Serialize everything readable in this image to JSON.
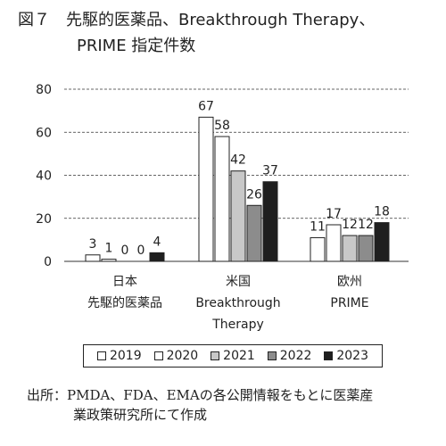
{
  "figure": {
    "title_line1": "図７　先駆的医薬品、Breakthrough Therapy、",
    "title_line2": "PRIME 指定件数",
    "source_line1": "出所：PMDA、FDA、EMAの各公開情報をもとに医薬産",
    "source_line2": "業政策研究所にて作成"
  },
  "chart_data": {
    "type": "bar",
    "title": "図７　先駆的医薬品、Breakthrough Therapy、PRIME 指定件数",
    "categories": [
      "日本\n先駆的医薬品",
      "米国\nBreakthrough\nTherapy",
      "欧州\nPRIME"
    ],
    "category_lines": [
      [
        "日本",
        "先駆的医薬品"
      ],
      [
        "米国",
        "Breakthrough",
        "Therapy"
      ],
      [
        "欧州",
        "PRIME"
      ]
    ],
    "series": [
      {
        "name": "2019",
        "values": [
          3,
          67,
          11
        ],
        "color": "#ffffff"
      },
      {
        "name": "2020",
        "values": [
          1,
          58,
          17
        ],
        "color": "#ffffff"
      },
      {
        "name": "2021",
        "values": [
          0,
          42,
          12
        ],
        "color": "#c8c8c8"
      },
      {
        "name": "2022",
        "values": [
          0,
          26,
          12
        ],
        "color": "#8c8c8c"
      },
      {
        "name": "2023",
        "values": [
          4,
          37,
          18
        ],
        "color": "#1f1f1f"
      }
    ],
    "data_labels": [
      [
        "3",
        "1",
        "0",
        "0",
        "4"
      ],
      [
        "67",
        "58",
        "42",
        "26",
        "37"
      ],
      [
        "11",
        "17",
        "12",
        "12",
        "18"
      ]
    ],
    "yticks": [
      0,
      20,
      40,
      60,
      80
    ],
    "ylim": [
      0,
      80
    ],
    "xlabel": "",
    "ylabel": "",
    "grid": true,
    "legend_position": "bottom"
  }
}
